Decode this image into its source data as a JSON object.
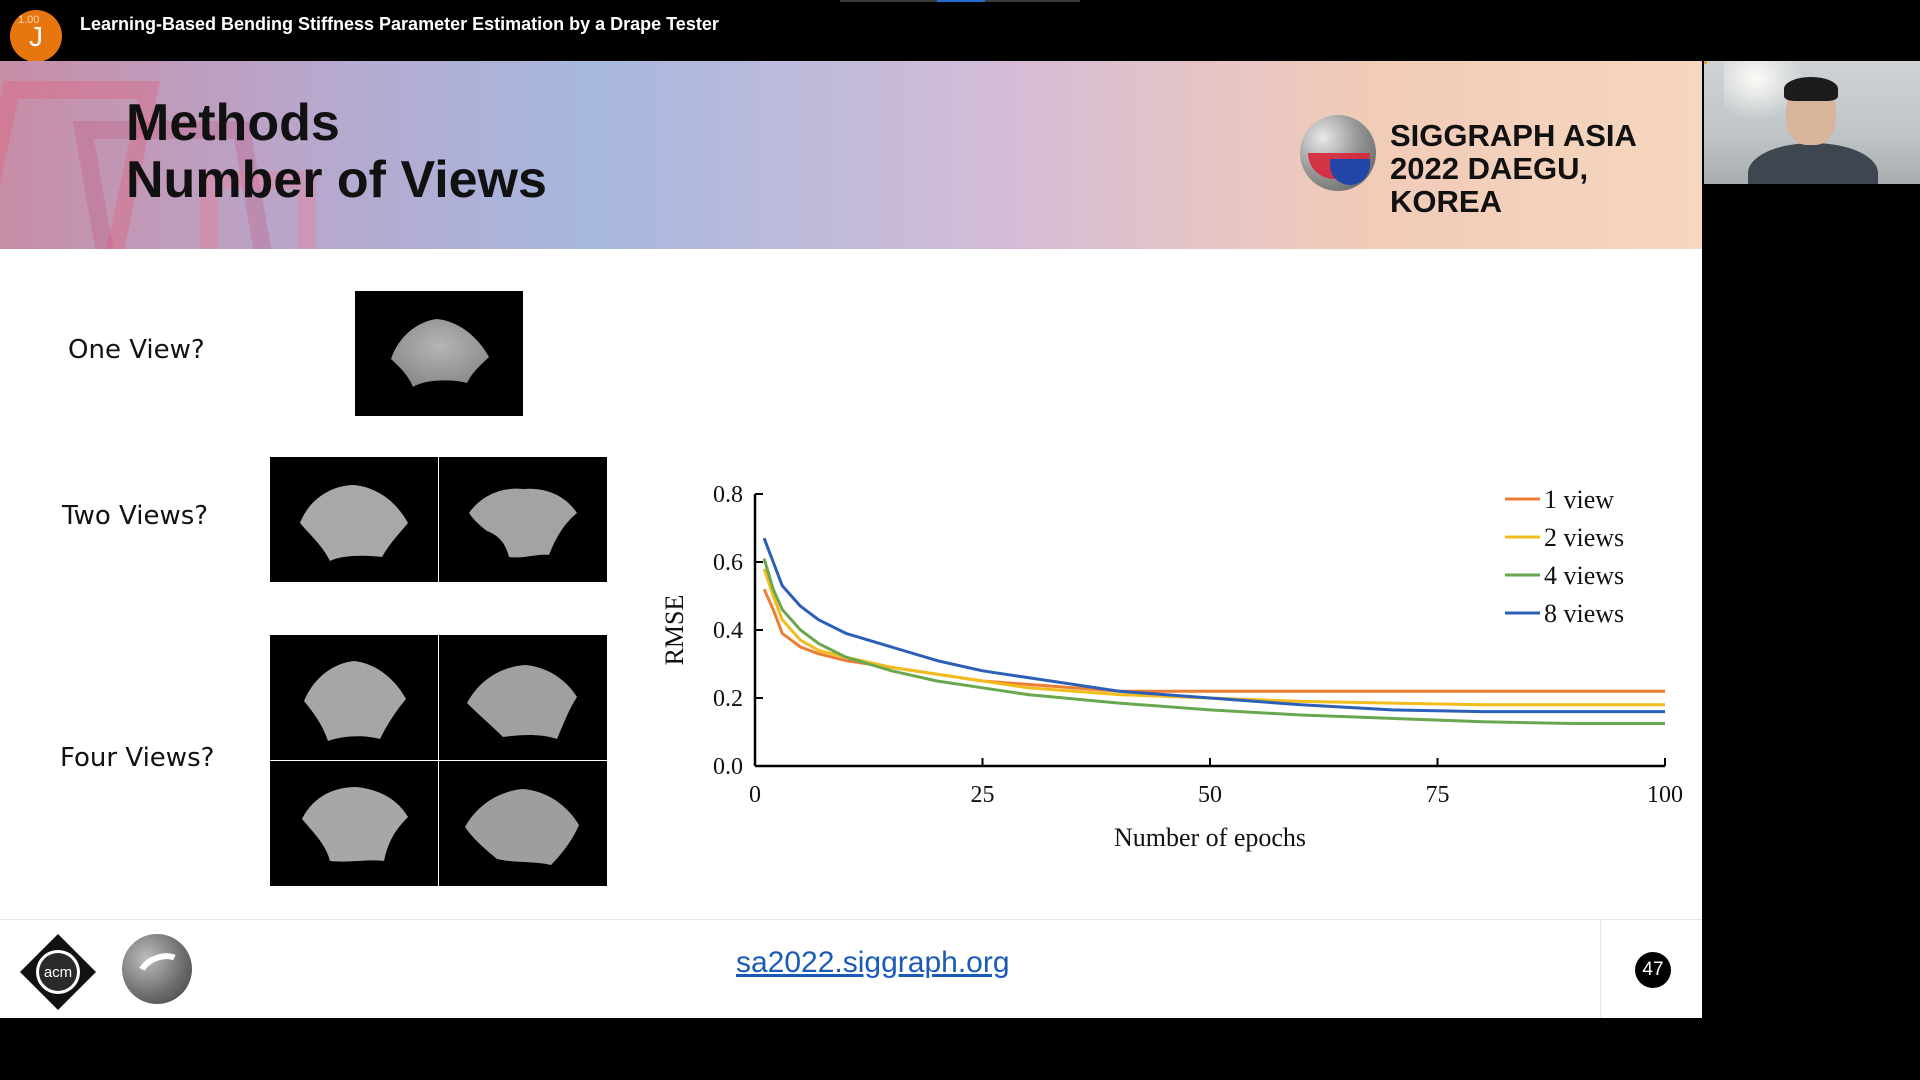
{
  "meeting": {
    "title": "Learning-Based Bending Stiffness Parameter Estimation by a Drape Tester",
    "avatar_letter": "J",
    "avatar_badge": "1.00"
  },
  "slide": {
    "title_line1": "Methods",
    "title_line2": "Number of Views",
    "conference_line1": "SIGGRAPH ASIA",
    "conference_line2": "2022 DAEGU, KOREA",
    "rows": [
      {
        "label": "One View?"
      },
      {
        "label": "Two Views?"
      },
      {
        "label": "Four Views?"
      }
    ],
    "footer_link": "sa2022.siggraph.org",
    "page_number": "47",
    "acm_text": "acm"
  },
  "chart_data": {
    "type": "line",
    "title": "",
    "xlabel": "Number of epochs",
    "ylabel": "RMSE",
    "xlim": [
      0,
      100
    ],
    "ylim": [
      0,
      0.8
    ],
    "xticks": [
      "0",
      "25",
      "50",
      "75",
      "100"
    ],
    "yticks": [
      "0.0",
      "0.2",
      "0.4",
      "0.6",
      "0.8"
    ],
    "legend_position": "top-right",
    "x": [
      1,
      2,
      3,
      5,
      7,
      10,
      15,
      20,
      25,
      30,
      40,
      50,
      60,
      70,
      80,
      90,
      100
    ],
    "series": [
      {
        "name": "1 view",
        "color": "#ec7d33",
        "values": [
          0.52,
          0.46,
          0.39,
          0.35,
          0.33,
          0.31,
          0.29,
          0.27,
          0.25,
          0.24,
          0.22,
          0.22,
          0.22,
          0.22,
          0.22,
          0.22,
          0.22
        ]
      },
      {
        "name": "2 views",
        "color": "#f2bc1c",
        "values": [
          0.58,
          0.5,
          0.43,
          0.37,
          0.34,
          0.32,
          0.29,
          0.27,
          0.25,
          0.23,
          0.21,
          0.2,
          0.19,
          0.185,
          0.18,
          0.18,
          0.18
        ]
      },
      {
        "name": "4 views",
        "color": "#6aa84f",
        "values": [
          0.61,
          0.52,
          0.46,
          0.4,
          0.36,
          0.32,
          0.28,
          0.25,
          0.23,
          0.21,
          0.185,
          0.165,
          0.15,
          0.14,
          0.13,
          0.125,
          0.125
        ]
      },
      {
        "name": "8 views",
        "color": "#2b5fb8",
        "values": [
          0.67,
          0.6,
          0.53,
          0.47,
          0.43,
          0.39,
          0.35,
          0.31,
          0.28,
          0.26,
          0.22,
          0.2,
          0.18,
          0.165,
          0.16,
          0.16,
          0.16
        ]
      }
    ]
  }
}
